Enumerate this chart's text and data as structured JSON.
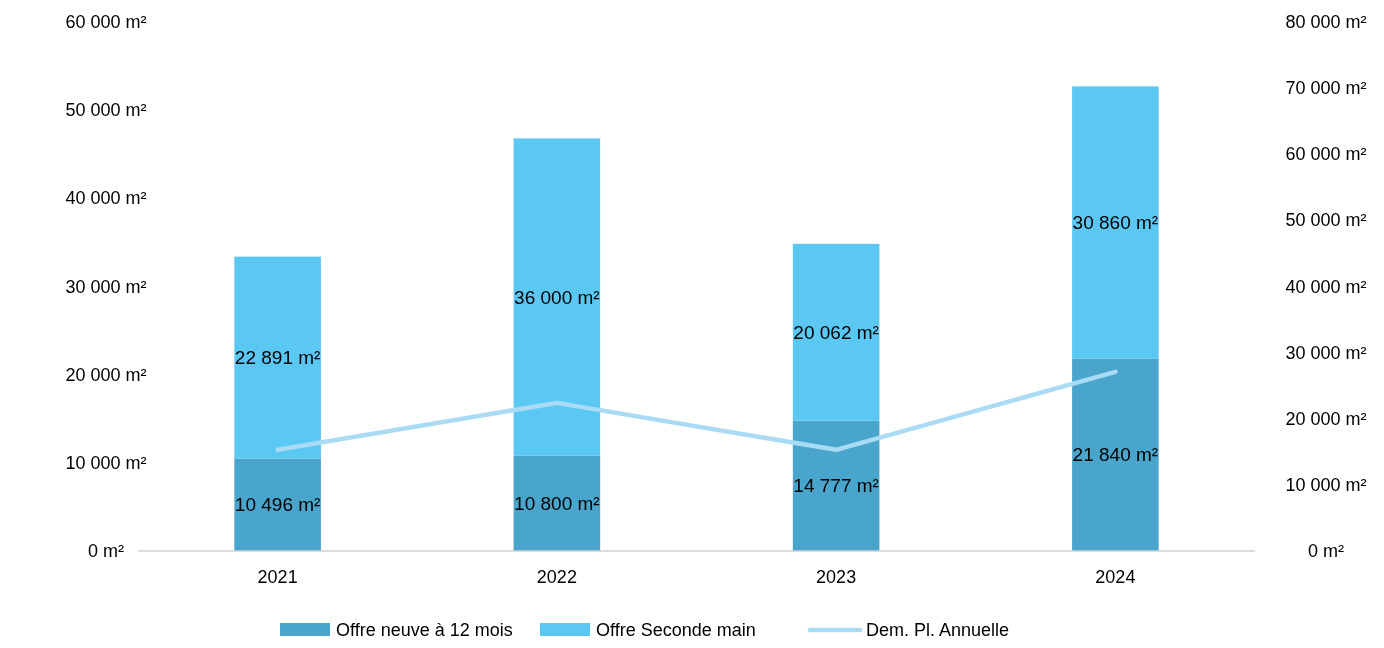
{
  "chart_data": {
    "type": "bar",
    "stacked": true,
    "categories": [
      "2021",
      "2022",
      "2023",
      "2024"
    ],
    "series": [
      {
        "name": "Offre neuve à 12 mois",
        "color": "#4aa5cc",
        "values": [
          10496,
          10800,
          14777,
          21840
        ],
        "value_labels": [
          "10 496 m²",
          "10 800 m²",
          "14 777 m²",
          "21 840 m²"
        ]
      },
      {
        "name": "Offre Seconde main",
        "color": "#5bc8f4",
        "values": [
          22891,
          36000,
          20062,
          30860
        ],
        "value_labels": [
          "22 891 m²",
          "36 000 m²",
          "20 062 m²",
          "30 860 m²"
        ]
      },
      {
        "name": "Dem. Pl. Annuelle",
        "type": "line",
        "axis": "y2",
        "color": "#a9dbf5",
        "values": [
          15300,
          22400,
          15300,
          27100
        ]
      }
    ],
    "ylim": [
      0,
      60000
    ],
    "yticks": [
      {
        "value": 0,
        "label": "0 m²"
      },
      {
        "value": 10000,
        "label": "10 000 m²"
      },
      {
        "value": 20000,
        "label": "20 000 m²"
      },
      {
        "value": 30000,
        "label": "30 000 m²"
      },
      {
        "value": 40000,
        "label": "40 000 m²"
      },
      {
        "value": 50000,
        "label": "50 000 m²"
      },
      {
        "value": 60000,
        "label": "60 000 m²"
      }
    ],
    "y2lim": [
      0,
      80000
    ],
    "y2ticks": [
      {
        "value": 0,
        "label": "0 m²"
      },
      {
        "value": 10000,
        "label": "10 000 m²"
      },
      {
        "value": 20000,
        "label": "20 000 m²"
      },
      {
        "value": 30000,
        "label": "30 000 m²"
      },
      {
        "value": 40000,
        "label": "40 000 m²"
      },
      {
        "value": 50000,
        "label": "50 000 m²"
      },
      {
        "value": 60000,
        "label": "60 000 m²"
      },
      {
        "value": 70000,
        "label": "70 000 m²"
      },
      {
        "value": 80000,
        "label": "80 000 m²"
      }
    ],
    "grid": false,
    "legend": "bottom",
    "marker": "none",
    "line_style": "solid"
  }
}
